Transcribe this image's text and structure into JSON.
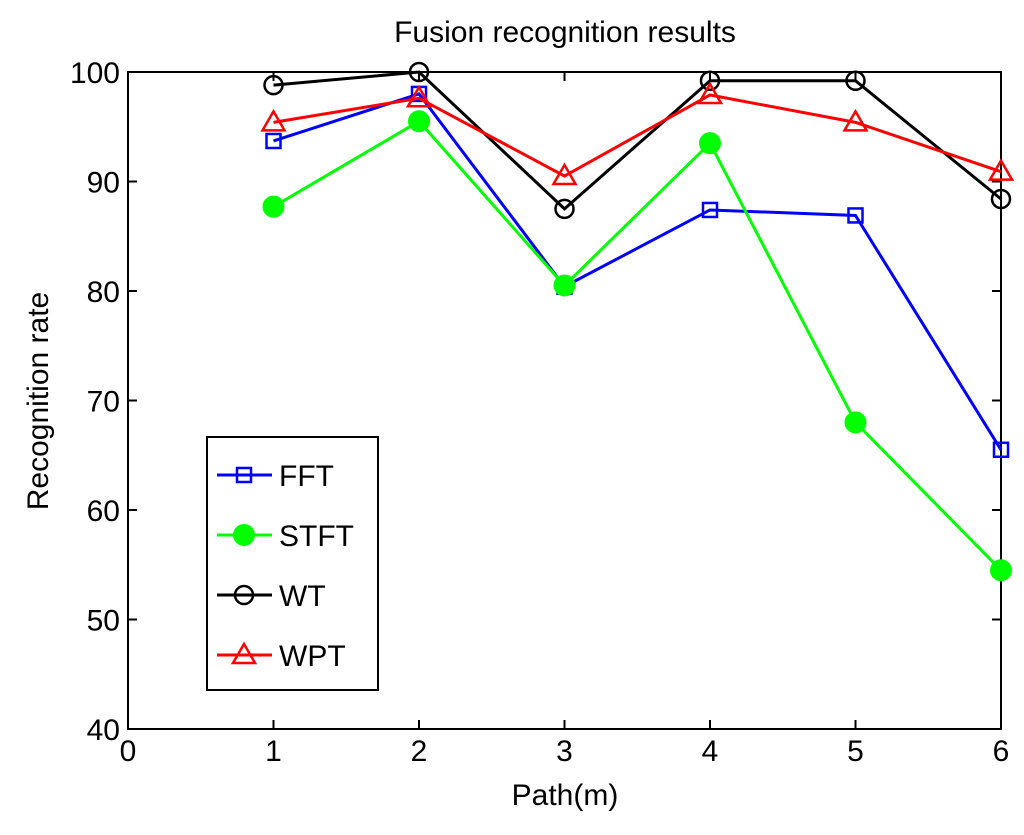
{
  "chart_data": {
    "type": "line",
    "title": "Fusion recognition results",
    "xlabel": "Path(m)",
    "ylabel": "Recognition rate",
    "xlim": [
      0,
      6
    ],
    "ylim": [
      40,
      100
    ],
    "xticks": [
      0,
      1,
      2,
      3,
      4,
      5,
      6
    ],
    "yticks": [
      40,
      50,
      60,
      70,
      80,
      90,
      100
    ],
    "grid": false,
    "legend_position": "lower-left",
    "x": [
      1,
      2,
      3,
      4,
      5,
      6
    ],
    "series": [
      {
        "name": "FFT",
        "values": [
          93.7,
          98.0,
          80.4,
          87.4,
          86.9,
          65.5
        ],
        "color": "#0000ff",
        "marker": "square"
      },
      {
        "name": "STFT",
        "values": [
          87.7,
          95.5,
          80.5,
          93.5,
          68.0,
          54.5
        ],
        "color": "#00ff00",
        "marker": "circle-filled"
      },
      {
        "name": "WT",
        "values": [
          98.8,
          100.0,
          87.5,
          99.2,
          99.2,
          88.4
        ],
        "color": "#000000",
        "marker": "circle-open"
      },
      {
        "name": "WPT",
        "values": [
          95.4,
          97.6,
          90.5,
          97.9,
          95.4,
          90.9
        ],
        "color": "#ff0000",
        "marker": "triangle"
      }
    ]
  }
}
